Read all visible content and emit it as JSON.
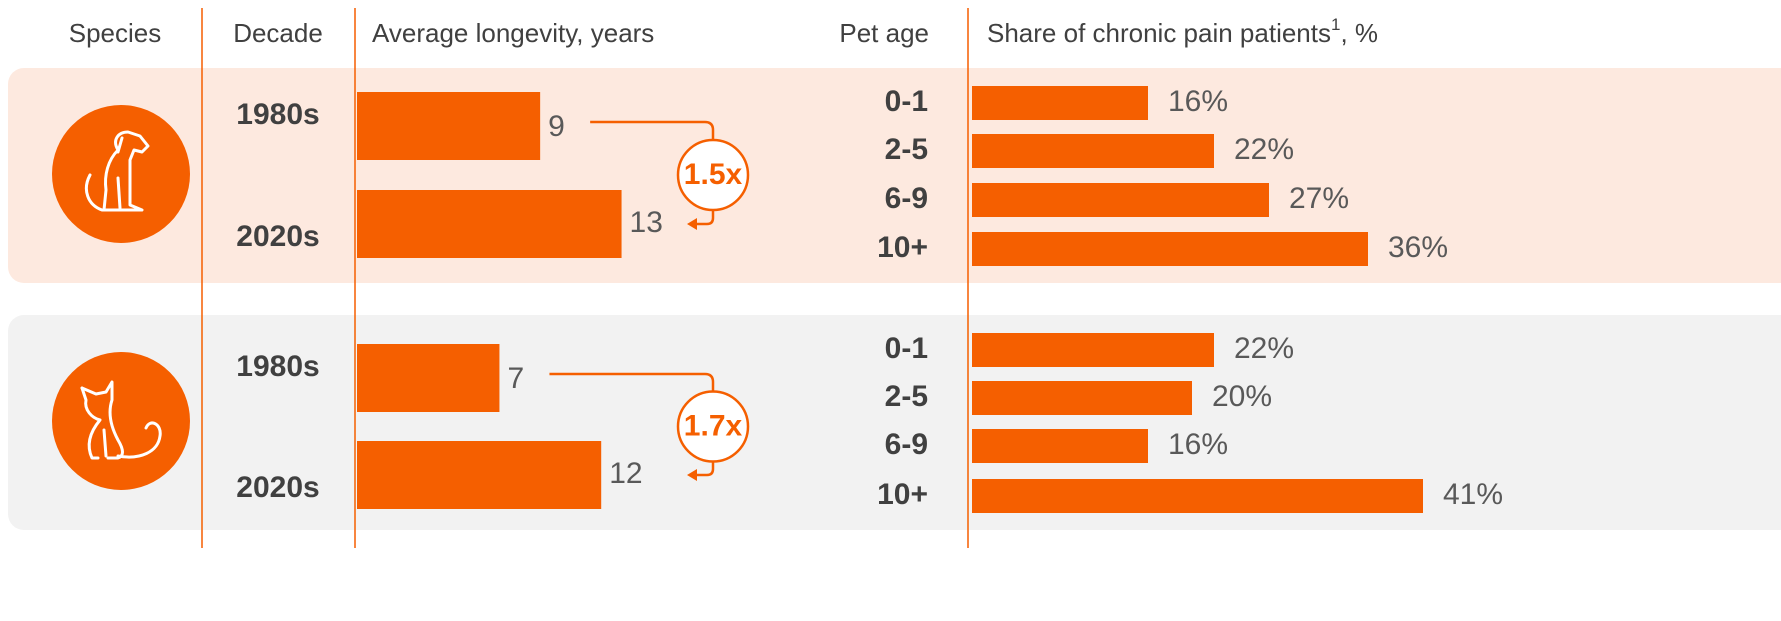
{
  "headers": {
    "species": "Species",
    "decade": "Decade",
    "longevity": "Average longevity, years",
    "pet_age": "Pet age",
    "share": "Share of chronic pain patients",
    "share_note": "1",
    "share_unit": ", %"
  },
  "chart_data": [
    {
      "type": "bar",
      "categories": [
        "1980s",
        "2020s"
      ],
      "values": [
        9,
        13
      ],
      "color": "#f55f00",
      "annotation": "1.5x"
    },
    {
      "type": "bar",
      "categories": [
        "0-1",
        "2-5",
        "6-9",
        "10+"
      ],
      "values": [
        16,
        22,
        27,
        36
      ],
      "value_labels": [
        "16%",
        "22%",
        "27%",
        "36%"
      ],
      "color": "#f55f00"
    },
    {
      "type": "bar",
      "categories": [
        "1980s",
        "2020s"
      ],
      "values": [
        7,
        12
      ],
      "color": "#f55f00",
      "annotation": "1.7x"
    },
    {
      "type": "bar",
      "categories": [
        "0-1",
        "2-5",
        "6-9",
        "10+"
      ],
      "values": [
        22,
        20,
        16,
        41
      ],
      "value_labels": [
        "22%",
        "20%",
        "16%",
        "41%"
      ],
      "color": "#f55f00"
    }
  ]
}
